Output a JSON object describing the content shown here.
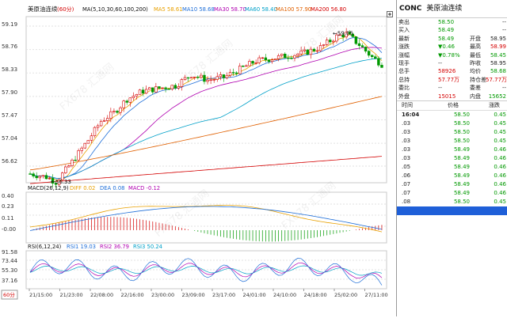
{
  "app": {
    "symbol_name": "美原油连续",
    "period": "60分",
    "ma_header": "MA(5,10,30,60,100,200)",
    "ma_values": [
      {
        "label": "MA5",
        "value": "58.61",
        "color": "#e8a000"
      },
      {
        "label": "MA10",
        "value": "58.68",
        "color": "#1e6ed8"
      },
      {
        "label": "MA30",
        "value": "58.70",
        "color": "#b000b0"
      },
      {
        "label": "MA60",
        "value": "58.40",
        "color": "#00a0c8"
      },
      {
        "label": "MA100",
        "value": "57.90",
        "color": "#e06000"
      },
      {
        "label": "MA200",
        "value": "56.80",
        "color": "#d40000"
      }
    ]
  },
  "main_chart": {
    "y_ticks": [
      "59.19",
      "58.76",
      "58.33",
      "57.90",
      "57.47",
      "57.04",
      "56.62"
    ],
    "y_tick_values": [
      59.19,
      58.76,
      58.33,
      57.9,
      57.47,
      57.04,
      56.62
    ],
    "y_range": [
      56.33,
      59.35
    ],
    "high_label": "59.05",
    "low_label": "56.33",
    "high_value": 59.05,
    "low_value": 56.33
  },
  "macd_panel": {
    "title": "MACD(26,12,9)",
    "diff": "DIFF 0.02",
    "dea": "DEA 0.08",
    "macd": "MACD -0.12",
    "y_ticks": [
      "0.40",
      "0.23",
      "0.11",
      "-0.00"
    ]
  },
  "rsi_panel": {
    "title": "RSI(6,12,24)",
    "rsi1": "RSI1 19.03",
    "rsi2": "RSI2 36.79",
    "rsi3": "RSI3 50.24",
    "y_ticks": [
      "91.58",
      "73.44",
      "55.30",
      "37.16"
    ]
  },
  "x_axis": {
    "period_button": "60分",
    "labels": [
      "21/15:00",
      "21/23:00",
      "22/08:00",
      "22/16:00",
      "23/00:00",
      "23/09:00",
      "23/17:00",
      "24/01:00",
      "24/10:00",
      "24/18:00",
      "25/02:00",
      "27/11:00"
    ]
  },
  "watermark": "FX678 汇通网",
  "quote_panel": {
    "code": "CONC",
    "name": "美原油连续",
    "rows": [
      {
        "l1": "卖出",
        "v1": "58.50",
        "v1c": "green",
        "l2": "",
        "v2": "--",
        "v2c": "dark"
      },
      {
        "l1": "买入",
        "v1": "58.49",
        "v1c": "green",
        "l2": "",
        "v2": "--",
        "v2c": "dark"
      },
      {
        "l1": "最新",
        "v1": "58.49",
        "v1c": "green",
        "l2": "开盘",
        "v2": "58.95",
        "v2c": "dark"
      },
      {
        "l1": "涨跌",
        "v1": "▼0.46",
        "v1c": "green",
        "l2": "最高",
        "v2": "58.99",
        "v2c": "red"
      },
      {
        "l1": "涨幅",
        "v1": "▼0.78%",
        "v1c": "green",
        "l2": "最低",
        "v2": "58.45",
        "v2c": "green"
      },
      {
        "l1": "现手",
        "v1": "--",
        "v1c": "dark",
        "l2": "昨收",
        "v2": "58.95",
        "v2c": "dark"
      },
      {
        "l1": "总手",
        "v1": "58926",
        "v1c": "red",
        "l2": "均价",
        "v2": "58.68",
        "v2c": "green"
      },
      {
        "l1": "总持",
        "v1": "57.77万",
        "v1c": "red",
        "l2": "持仓差",
        "v2": "57.77万",
        "v2c": "red"
      },
      {
        "l1": "委比",
        "v1": "--",
        "v1c": "dark",
        "l2": "委差",
        "v2": "--",
        "v2c": "dark"
      },
      {
        "l1": "外盘",
        "v1": "15015",
        "v1c": "red",
        "l2": "内盘",
        "v2": "15652",
        "v2c": "green"
      }
    ],
    "trades_header": {
      "time": "时间",
      "price": "价格",
      "change": "涨跌"
    },
    "trades": [
      {
        "time": "16:04",
        "price": "58.50",
        "change": "0.45"
      },
      {
        "time": ".03",
        "price": "58.50",
        "change": "0.45"
      },
      {
        "time": ".03",
        "price": "58.50",
        "change": "0.45"
      },
      {
        "time": ".03",
        "price": "58.50",
        "change": "0.45"
      },
      {
        "time": ".03",
        "price": "58.49",
        "change": "0.46"
      },
      {
        "time": ".03",
        "price": "58.49",
        "change": "0.46"
      },
      {
        "time": ".05",
        "price": "58.49",
        "change": "0.46"
      },
      {
        "time": ".06",
        "price": "58.49",
        "change": "0.46"
      },
      {
        "time": ".07",
        "price": "58.49",
        "change": "0.46"
      },
      {
        "time": ".07",
        "price": "58.49",
        "change": "0.46"
      },
      {
        "time": ".08",
        "price": "58.50",
        "change": "0.45"
      }
    ]
  },
  "colors": {
    "up_candle": "#d40000",
    "down_candle": "#009900",
    "grid": "#d8d8d8",
    "selected_row": "#1e5fd8"
  }
}
